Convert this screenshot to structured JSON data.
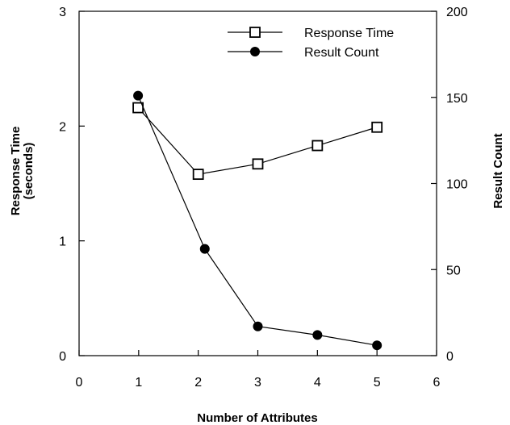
{
  "chart_data": {
    "type": "line",
    "title": "",
    "xlabel": "Number of Attributes",
    "ylabel_left": [
      "Response Time",
      "(seconds)"
    ],
    "ylabel_right": "Result Count",
    "xlim": [
      0,
      6
    ],
    "ylim_left": [
      0,
      3
    ],
    "ylim_right": [
      0,
      200
    ],
    "x_ticks": [
      "0",
      "1",
      "2",
      "3",
      "4",
      "5",
      "6"
    ],
    "y_left_ticks": [
      "0",
      "1",
      "2",
      "3"
    ],
    "y_right_ticks": [
      "0",
      "50",
      "100",
      "150",
      "200"
    ],
    "grid": false,
    "legend_position": "top-right",
    "series": [
      {
        "name": "Response Time",
        "axis": "left",
        "marker": "open-square",
        "color": "#000000",
        "points": [
          [
            0.99,
            2.16
          ],
          [
            2.0,
            1.58
          ],
          [
            3.0,
            1.67
          ],
          [
            4.0,
            1.83
          ],
          [
            5.0,
            1.99
          ]
        ]
      },
      {
        "name": "Result Count",
        "axis": "right",
        "marker": "filled-circle",
        "color": "#000000",
        "points": [
          [
            0.99,
            151
          ],
          [
            2.11,
            62
          ],
          [
            3.0,
            17
          ],
          [
            4.0,
            12
          ],
          [
            5.0,
            6
          ]
        ]
      }
    ]
  }
}
